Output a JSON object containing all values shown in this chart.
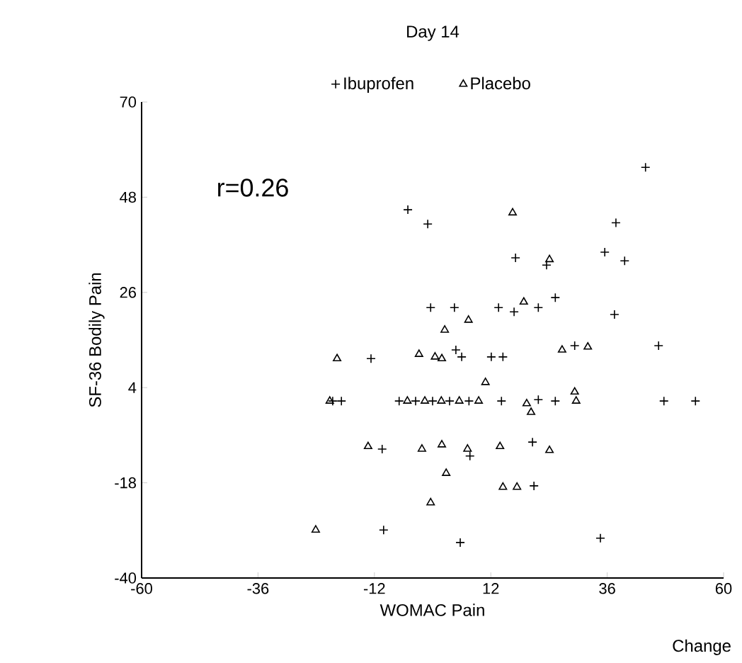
{
  "chart_data": {
    "type": "scatter",
    "title": "Day 14",
    "xlabel": "WOMAC Pain",
    "ylabel": "SF-36 Bodily Pain",
    "annotations": [
      "r=0.26",
      "Change"
    ],
    "xlim": [
      -60,
      60
    ],
    "ylim": [
      -40,
      70
    ],
    "xticks": [
      -60,
      -36,
      -12,
      12,
      36,
      60
    ],
    "yticks": [
      -40,
      -18,
      4,
      26,
      48,
      70
    ],
    "legend": "top",
    "series": [
      {
        "name": "Ibuprofen",
        "color": "#000000",
        "marker": "cross",
        "x": [
          -10.1,
          -5.1,
          -1.0,
          -0.4,
          -12.7,
          43.9,
          37.8,
          17.1,
          23.5,
          35.5,
          39.6,
          4.5,
          13.6,
          16.8,
          21.8,
          25.3,
          37.5,
          4.8,
          6.0,
          12.1,
          14.5,
          29.3,
          46.6,
          -20.6,
          -18.8,
          -6.9,
          -3.5,
          0,
          3.5,
          7.5,
          14.2,
          21.8,
          25.3,
          47.7,
          54.2,
          -10.4,
          7.7,
          20.6,
          20.9,
          5.7,
          34.6
        ],
        "values": [
          -28.9,
          45.1,
          41.8,
          22.5,
          10.7,
          54.9,
          42.1,
          34.0,
          32.3,
          35.3,
          33.3,
          22.5,
          22.5,
          21.5,
          22.5,
          24.8,
          20.9,
          12.7,
          11.1,
          11.1,
          11.1,
          13.7,
          13.7,
          0.9,
          0.9,
          0.9,
          0.9,
          0.9,
          0.9,
          0.9,
          0.9,
          1.2,
          0.9,
          0.9,
          0.9,
          -10.2,
          -11.8,
          -8.6,
          -18.7,
          -31.8,
          -30.8
        ]
      },
      {
        "name": "Placebo",
        "color": "#000000",
        "marker": "triangle",
        "x": [
          -24.1,
          16.5,
          24.1,
          18.8,
          2.5,
          7.4,
          1.9,
          0.5,
          -19.7,
          -2.8,
          26.7,
          32.0,
          -21.2,
          -5.2,
          -1.6,
          1.8,
          5.5,
          9.5,
          10.9,
          19.4,
          20.3,
          29.3,
          29.6,
          -13.3,
          -2.2,
          1.9,
          7.2,
          13.9,
          24.1,
          2.8,
          14.5,
          17.4,
          -0.4
        ],
        "values": [
          -28.9,
          44.4,
          33.6,
          23.8,
          17.3,
          19.6,
          10.7,
          11.1,
          10.7,
          11.7,
          12.7,
          13.4,
          0.9,
          0.9,
          0.9,
          0.9,
          0.9,
          0.9,
          5.2,
          0.3,
          -1.7,
          3.0,
          0.9,
          -9.6,
          -10.2,
          -9.2,
          -10.2,
          -9.6,
          -10.5,
          -15.8,
          -19.0,
          -19.0,
          -22.6
        ]
      }
    ]
  }
}
